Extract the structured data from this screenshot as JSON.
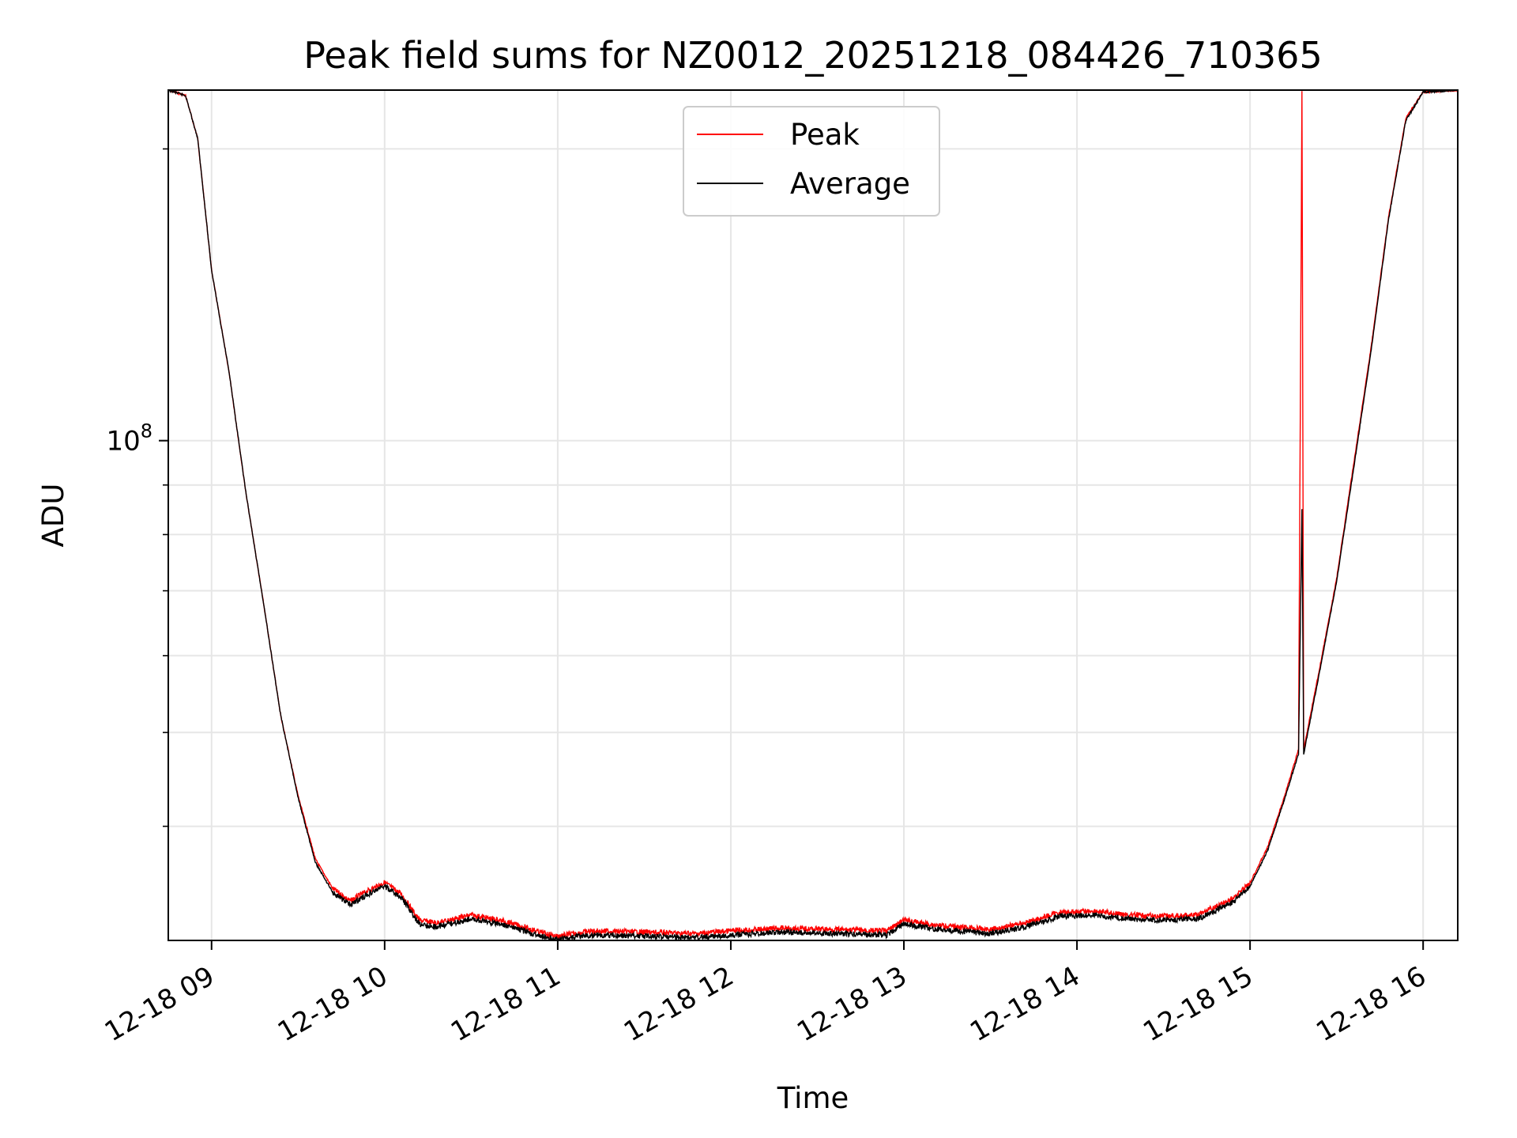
{
  "chart_data": {
    "type": "line",
    "title": "Peak field sums for NZ0012_20251218_084426_710365",
    "xlabel": "Time",
    "ylabel": "ADU",
    "yscale": "log",
    "ylim": [
      30500000,
      230000000
    ],
    "xlim_hours": [
      8.75,
      16.2
    ],
    "x_ticks": [
      {
        "hour": 9,
        "label": "12-18 09"
      },
      {
        "hour": 10,
        "label": "12-18 10"
      },
      {
        "hour": 11,
        "label": "12-18 11"
      },
      {
        "hour": 12,
        "label": "12-18 12"
      },
      {
        "hour": 13,
        "label": "12-18 13"
      },
      {
        "hour": 14,
        "label": "12-18 14"
      },
      {
        "hour": 15,
        "label": "12-18 15"
      },
      {
        "hour": 16,
        "label": "12-18 16"
      }
    ],
    "y_major_ticks": [
      {
        "value": 100000000,
        "base": "10",
        "exp": "8"
      }
    ],
    "y_minor_ticks": [
      40000000,
      50000000,
      60000000,
      70000000,
      80000000,
      90000000,
      200000000
    ],
    "grid": true,
    "legend_position": "top-center",
    "x_unit": "hour of day (2025-12-18)",
    "series": [
      {
        "name": "Peak",
        "color": "#ff0000",
        "points": [
          [
            8.75,
            230000000
          ],
          [
            8.85,
            227000000
          ],
          [
            8.92,
            205000000
          ],
          [
            9.0,
            150000000
          ],
          [
            9.1,
            118000000
          ],
          [
            9.2,
            88000000
          ],
          [
            9.3,
            68000000
          ],
          [
            9.4,
            52000000
          ],
          [
            9.5,
            43000000
          ],
          [
            9.6,
            37000000
          ],
          [
            9.7,
            34500000
          ],
          [
            9.8,
            33500000
          ],
          [
            9.9,
            34300000
          ],
          [
            10.0,
            35000000
          ],
          [
            10.1,
            34000000
          ],
          [
            10.2,
            32000000
          ],
          [
            10.3,
            31800000
          ],
          [
            10.5,
            32400000
          ],
          [
            10.7,
            31900000
          ],
          [
            10.9,
            31100000
          ],
          [
            11.0,
            30800000
          ],
          [
            11.2,
            31200000
          ],
          [
            11.5,
            31100000
          ],
          [
            11.8,
            31000000
          ],
          [
            12.0,
            31200000
          ],
          [
            12.3,
            31400000
          ],
          [
            12.6,
            31300000
          ],
          [
            12.9,
            31200000
          ],
          [
            13.0,
            32000000
          ],
          [
            13.2,
            31600000
          ],
          [
            13.5,
            31300000
          ],
          [
            13.7,
            31800000
          ],
          [
            13.9,
            32600000
          ],
          [
            14.1,
            32700000
          ],
          [
            14.3,
            32400000
          ],
          [
            14.5,
            32300000
          ],
          [
            14.7,
            32400000
          ],
          [
            14.9,
            33700000
          ],
          [
            15.0,
            35000000
          ],
          [
            15.1,
            38000000
          ],
          [
            15.2,
            43000000
          ],
          [
            15.28,
            48000000
          ],
          [
            15.3,
            230000000
          ],
          [
            15.31,
            48000000
          ],
          [
            15.4,
            58000000
          ],
          [
            15.5,
            72000000
          ],
          [
            15.6,
            95000000
          ],
          [
            15.7,
            125000000
          ],
          [
            15.8,
            170000000
          ],
          [
            15.9,
            215000000
          ],
          [
            16.0,
            229000000
          ],
          [
            16.2,
            230000000
          ]
        ]
      },
      {
        "name": "Average",
        "color": "#000000",
        "points": [
          [
            8.75,
            230000000
          ],
          [
            8.85,
            227000000
          ],
          [
            8.92,
            205000000
          ],
          [
            9.0,
            150000000
          ],
          [
            9.1,
            118000000
          ],
          [
            9.2,
            88000000
          ],
          [
            9.3,
            68000000
          ],
          [
            9.4,
            52000000
          ],
          [
            9.5,
            42800000
          ],
          [
            9.6,
            36700000
          ],
          [
            9.7,
            34200000
          ],
          [
            9.8,
            33200000
          ],
          [
            9.9,
            34000000
          ],
          [
            10.0,
            34700000
          ],
          [
            10.1,
            33700000
          ],
          [
            10.2,
            31700000
          ],
          [
            10.3,
            31500000
          ],
          [
            10.5,
            32100000
          ],
          [
            10.7,
            31600000
          ],
          [
            10.9,
            30800000
          ],
          [
            11.0,
            30600000
          ],
          [
            11.2,
            30900000
          ],
          [
            11.5,
            30800000
          ],
          [
            11.8,
            30700000
          ],
          [
            12.0,
            30900000
          ],
          [
            12.3,
            31100000
          ],
          [
            12.6,
            31000000
          ],
          [
            12.9,
            30900000
          ],
          [
            13.0,
            31700000
          ],
          [
            13.2,
            31300000
          ],
          [
            13.5,
            31000000
          ],
          [
            13.7,
            31500000
          ],
          [
            13.9,
            32300000
          ],
          [
            14.1,
            32400000
          ],
          [
            14.3,
            32100000
          ],
          [
            14.5,
            32000000
          ],
          [
            14.7,
            32100000
          ],
          [
            14.9,
            33400000
          ],
          [
            15.0,
            34700000
          ],
          [
            15.1,
            37700000
          ],
          [
            15.2,
            42700000
          ],
          [
            15.28,
            47500000
          ],
          [
            15.3,
            85000000
          ],
          [
            15.31,
            47500000
          ],
          [
            15.4,
            57500000
          ],
          [
            15.5,
            71500000
          ],
          [
            15.6,
            94000000
          ],
          [
            15.7,
            124000000
          ],
          [
            15.8,
            169000000
          ],
          [
            15.9,
            214000000
          ],
          [
            16.0,
            229000000
          ],
          [
            16.2,
            230000000
          ]
        ]
      }
    ]
  }
}
